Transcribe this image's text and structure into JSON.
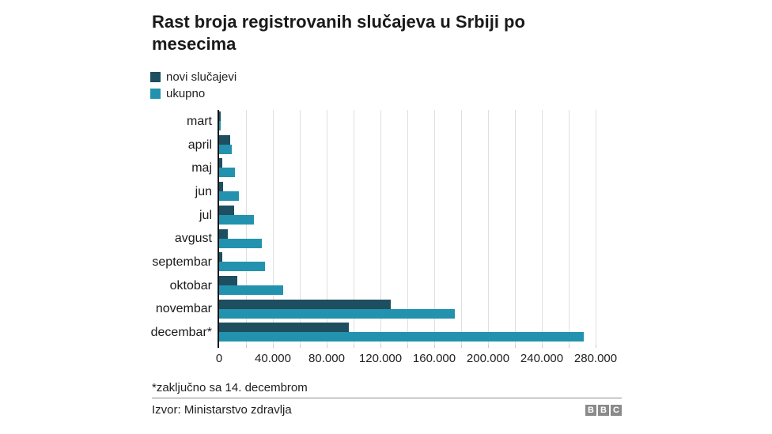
{
  "chart": {
    "title": "Rast broja registrovanih slučajeva u Srbiji po mesecima",
    "footnote": "*zaključno sa 14. decembrom",
    "source": "Izvor: Ministarstvo zdravlja",
    "brand_letters": [
      "B",
      "B",
      "C"
    ]
  },
  "colors": {
    "novi": "#1d4f60",
    "ukupno": "#2292ae",
    "gridline": "#dfdfdf",
    "axis": "#111111",
    "text": "#1f1f1f",
    "separator": "#8c8c8c",
    "logo_bg": "#8a8a8a"
  },
  "chart_data": {
    "type": "bar",
    "orientation": "horizontal",
    "title": "Rast broja registrovanih slučajeva u Srbiji po mesecima",
    "categories": [
      "mart",
      "april",
      "maj",
      "jun",
      "jul",
      "avgust",
      "septembar",
      "oktobar",
      "novembar",
      "decembar*"
    ],
    "series": [
      {
        "name": "novi slučajevi",
        "color": "#1d4f60",
        "values": [
          900,
          8400,
          2300,
          3100,
          11000,
          6200,
          2200,
          13400,
          127500,
          96400
        ]
      },
      {
        "name": "ukupno",
        "color": "#2292ae",
        "values": [
          900,
          9300,
          11600,
          14700,
          25700,
          31900,
          34100,
          47500,
          175000,
          271400
        ]
      }
    ],
    "xlim": [
      0,
      280000
    ],
    "x_ticks": [
      0,
      40000,
      80000,
      120000,
      160000,
      200000,
      240000,
      280000
    ],
    "x_tick_labels": [
      "0",
      "40.000",
      "80.000",
      "120.000",
      "160.000",
      "200.000",
      "240.000",
      "280.000"
    ],
    "gridline_interval": 20000,
    "grid": "vertical",
    "legend_position": "top-left",
    "footnote": "*zaključno sa 14. decembrom",
    "source": "Izvor: Ministarstvo zdravlja"
  }
}
